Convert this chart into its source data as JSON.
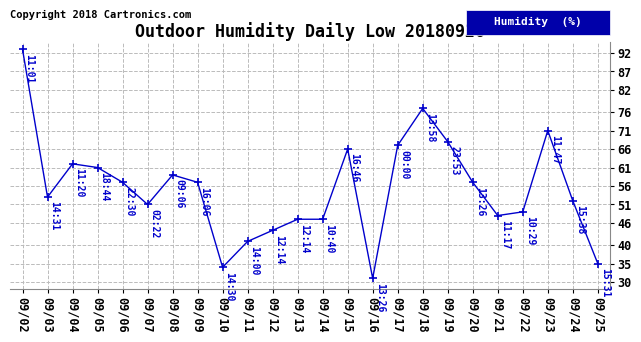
{
  "title": "Outdoor Humidity Daily Low 20180926",
  "copyright": "Copyright 2018 Cartronics.com",
  "legend_label": "Humidity  (%)",
  "x_labels": [
    "09/02",
    "09/03",
    "09/04",
    "09/05",
    "09/06",
    "09/07",
    "09/08",
    "09/09",
    "09/10",
    "09/11",
    "09/12",
    "09/13",
    "09/14",
    "09/15",
    "09/16",
    "09/17",
    "09/18",
    "09/19",
    "09/20",
    "09/21",
    "09/22",
    "09/23",
    "09/24",
    "09/25"
  ],
  "y_values": [
    93,
    53,
    62,
    61,
    57,
    51,
    59,
    57,
    34,
    41,
    44,
    47,
    47,
    66,
    31,
    67,
    77,
    68,
    57,
    48,
    49,
    71,
    52,
    35
  ],
  "time_labels": [
    "11:01",
    "14:31",
    "11:20",
    "18:44",
    "22:30",
    "02:22",
    "09:06",
    "16:06",
    "14:30",
    "14:00",
    "12:14",
    "12:14",
    "10:40",
    "16:46",
    "13:26",
    "00:00",
    "13:58",
    "23:53",
    "13:26",
    "11:17",
    "10:29",
    "11:47",
    "15:38",
    "15:31"
  ],
  "yticks": [
    30,
    35,
    40,
    46,
    51,
    56,
    61,
    66,
    71,
    76,
    82,
    87,
    92
  ],
  "ylim": [
    28,
    95
  ],
  "line_color": "#0000cc",
  "bg_color": "#ffffff",
  "grid_color": "#bbbbbb",
  "legend_bg_color": "#0000aa",
  "legend_text_color": "#ffffff",
  "title_fontsize": 12,
  "annot_fontsize": 7,
  "tick_fontsize": 8.5,
  "copyright_fontsize": 7.5,
  "line_width": 1.0,
  "marker_size": 6
}
